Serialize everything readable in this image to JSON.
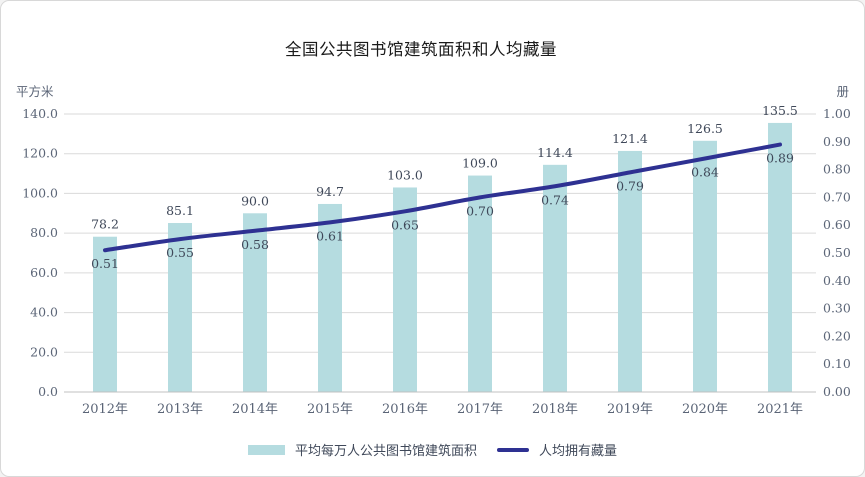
{
  "chart_data": {
    "type": "bar+line",
    "title": "全国公共图书馆建筑面积和人均藏量",
    "categories": [
      "2012年",
      "2013年",
      "2014年",
      "2015年",
      "2016年",
      "2017年",
      "2018年",
      "2019年",
      "2020年",
      "2021年"
    ],
    "series": [
      {
        "name": "平均每万人公共图书馆建筑面积",
        "type": "bar",
        "axis": "left",
        "color": "#b5dce0",
        "label_decimals": 1,
        "values": [
          78.2,
          85.1,
          90.0,
          94.7,
          103.0,
          109.0,
          114.4,
          121.4,
          126.5,
          135.5
        ]
      },
      {
        "name": "人均拥有藏量",
        "type": "line",
        "axis": "right",
        "color": "#2e3192",
        "label_decimals": 2,
        "values": [
          0.51,
          0.55,
          0.58,
          0.61,
          0.65,
          0.7,
          0.74,
          0.79,
          0.84,
          0.89
        ]
      }
    ],
    "left_axis": {
      "label": "平方米",
      "min": 0,
      "max": 140,
      "step": 20,
      "decimals": 1
    },
    "right_axis": {
      "label": "册",
      "min": 0,
      "max": 1,
      "step": 0.1,
      "decimals": 2
    },
    "grid": true,
    "legend_position": "bottom",
    "colors": {
      "grid": "#dadada",
      "axis_line": "#c0c0c0",
      "tick_text": "#5b6577",
      "data_label_text": "#3f4859",
      "title_text": "#1a1a1a",
      "background": "#ffffff",
      "border": "#d8d8d8"
    }
  }
}
